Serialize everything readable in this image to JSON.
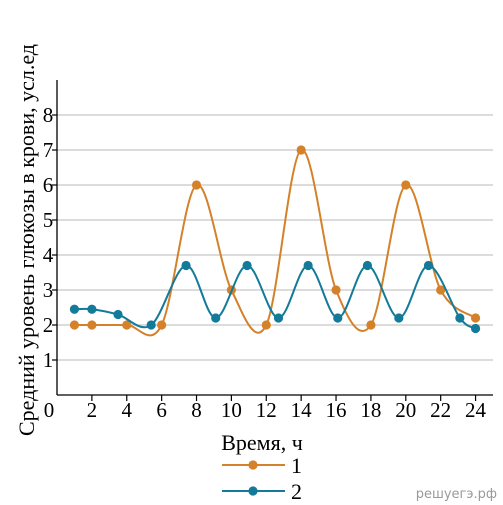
{
  "chart_data": {
    "type": "line",
    "title": "",
    "xlabel": "Время, ч",
    "ylabel": "Средний уровень глюкозы в крови, усл.ед",
    "xlim": [
      0,
      25
    ],
    "ylim": [
      0,
      9
    ],
    "x_ticks": [
      0,
      2,
      4,
      6,
      8,
      10,
      12,
      14,
      16,
      18,
      20,
      22,
      24
    ],
    "y_ticks": [
      1,
      2,
      3,
      4,
      5,
      6,
      7,
      8
    ],
    "grid": "horizontal",
    "legend_position": "bottom-center",
    "series": [
      {
        "name": "1",
        "color": "#D4812A",
        "x": [
          1,
          2,
          4,
          6,
          8,
          10,
          12,
          14,
          16,
          18,
          20,
          22,
          24
        ],
        "y": [
          2.0,
          2.0,
          2.0,
          2.0,
          6.0,
          3.0,
          2.0,
          7.0,
          3.0,
          2.0,
          6.0,
          3.0,
          2.2
        ]
      },
      {
        "name": "2",
        "color": "#137A99",
        "x": [
          1,
          2,
          3.5,
          5.4,
          7.4,
          9.1,
          10.9,
          12.7,
          14.4,
          16.1,
          17.8,
          19.6,
          21.3,
          23.1,
          24
        ],
        "y": [
          2.45,
          2.45,
          2.3,
          2.0,
          3.7,
          2.2,
          3.7,
          2.2,
          3.7,
          2.2,
          3.7,
          2.2,
          3.7,
          2.2,
          1.9
        ]
      }
    ]
  },
  "watermark": "решуегэ.рф"
}
